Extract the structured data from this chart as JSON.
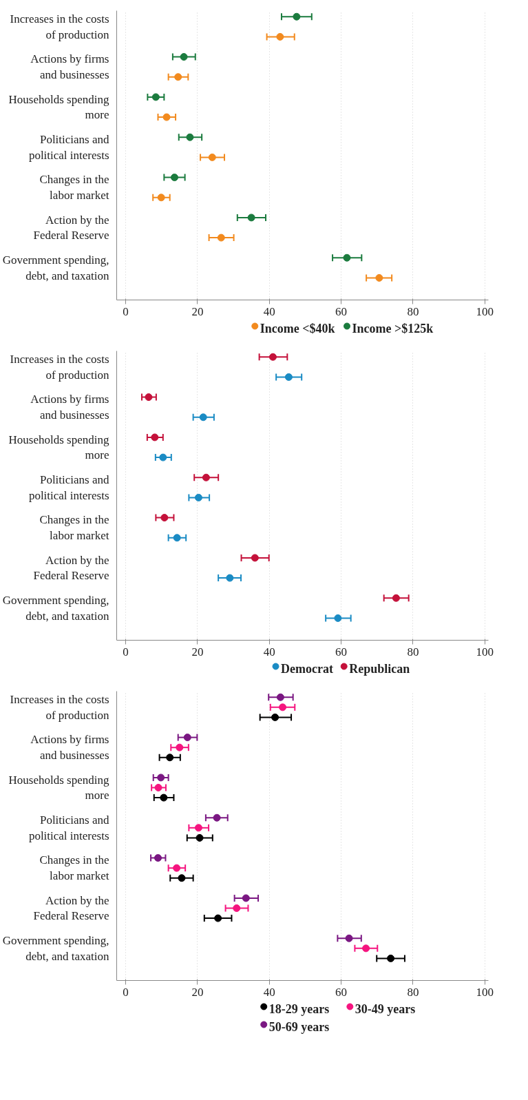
{
  "chart_data": [
    {
      "type": "scatter",
      "orientation": "horizontal",
      "marker": "circle",
      "grid": "x",
      "legend": "bottom",
      "categories": [
        "Increases in the costs\nof production",
        "Actions by firms\nand businesses",
        "Households spending\nmore",
        "Politicians and\npolitical interests",
        "Changes in the\nlabor market",
        "Action by the\nFederal Reserve",
        "Government spending,\ndebt, and taxation"
      ],
      "xlim": [
        -2.5,
        101
      ],
      "xticks": [
        0,
        20,
        40,
        60,
        80,
        100
      ],
      "series": [
        {
          "name": "Income <$40k",
          "color": "#f28a1e",
          "values": [
            43.0,
            14.6,
            11.4,
            24.1,
            9.9,
            26.6,
            70.6
          ],
          "errors": [
            [
              39.3,
              47.0
            ],
            [
              11.9,
              17.4
            ],
            [
              9.0,
              13.9
            ],
            [
              20.8,
              27.5
            ],
            [
              7.6,
              12.3
            ],
            [
              23.2,
              30.1
            ],
            [
              67.0,
              74.1
            ]
          ]
        },
        {
          "name": "Income >$125k",
          "color": "#1b7b3e",
          "values": [
            47.6,
            16.2,
            8.4,
            17.9,
            13.6,
            35.0,
            61.6
          ],
          "errors": [
            [
              43.4,
              51.8
            ],
            [
              13.1,
              19.4
            ],
            [
              6.1,
              10.7
            ],
            [
              14.8,
              21.2
            ],
            [
              10.7,
              16.5
            ],
            [
              31.1,
              39.0
            ],
            [
              57.6,
              65.7
            ]
          ]
        }
      ]
    },
    {
      "type": "scatter",
      "orientation": "horizontal",
      "marker": "circle",
      "grid": "x",
      "legend": "bottom",
      "categories": [
        "Increases in the costs\nof production",
        "Actions by firms\nand businesses",
        "Households spending\nmore",
        "Politicians and\npolitical interests",
        "Changes in the\nlabor market",
        "Action by the\nFederal Reserve",
        "Government spending,\ndebt, and taxation"
      ],
      "xlim": [
        -2.5,
        101
      ],
      "xticks": [
        0,
        20,
        40,
        60,
        80,
        100
      ],
      "series": [
        {
          "name": "Democrat",
          "color": "#1a8bc4",
          "values": [
            45.4,
            21.6,
            10.4,
            20.3,
            14.3,
            29.0,
            59.1
          ],
          "errors": [
            [
              41.9,
              49.0
            ],
            [
              18.8,
              24.6
            ],
            [
              8.3,
              12.7
            ],
            [
              17.6,
              23.3
            ],
            [
              11.9,
              16.8
            ],
            [
              25.8,
              32.1
            ],
            [
              55.7,
              62.7
            ]
          ]
        },
        {
          "name": "Republican",
          "color": "#c4113a",
          "values": [
            41.0,
            6.4,
            8.1,
            22.4,
            10.8,
            36.0,
            75.3
          ],
          "errors": [
            [
              37.2,
              45.0
            ],
            [
              4.5,
              8.5
            ],
            [
              6.0,
              10.4
            ],
            [
              19.1,
              25.8
            ],
            [
              8.4,
              13.4
            ],
            [
              32.2,
              39.9
            ],
            [
              71.9,
              78.8
            ]
          ]
        }
      ]
    },
    {
      "type": "scatter",
      "orientation": "horizontal",
      "marker": "circle",
      "grid": "x",
      "legend": "bottom",
      "categories": [
        "Increases in the costs\nof production",
        "Actions by firms\nand businesses",
        "Households spending\nmore",
        "Politicians and\npolitical interests",
        "Changes in the\nlabor market",
        "Action by the\nFederal Reserve",
        "Government spending,\ndebt, and taxation"
      ],
      "xlim": [
        -2.5,
        101
      ],
      "xticks": [
        0,
        20,
        40,
        60,
        80,
        100
      ],
      "series": [
        {
          "name": "18-29 years",
          "color": "#000000",
          "values": [
            41.6,
            12.3,
            10.6,
            20.6,
            15.6,
            25.7,
            73.8
          ],
          "errors": [
            [
              37.4,
              46.1
            ],
            [
              9.4,
              15.2
            ],
            [
              7.9,
              13.4
            ],
            [
              17.1,
              24.2
            ],
            [
              12.4,
              18.8
            ],
            [
              21.9,
              29.5
            ],
            [
              69.9,
              77.7
            ]
          ]
        },
        {
          "name": "30-49 years",
          "color": "#f5147f",
          "values": [
            43.7,
            15.0,
            9.1,
            20.3,
            14.2,
            30.9,
            66.9
          ],
          "errors": [
            [
              40.3,
              47.1
            ],
            [
              12.6,
              17.5
            ],
            [
              7.2,
              11.2
            ],
            [
              17.6,
              23.1
            ],
            [
              11.9,
              16.6
            ],
            [
              27.8,
              34.1
            ],
            [
              63.8,
              70.1
            ]
          ]
        },
        {
          "name": "50-69 years",
          "color": "#7a1782",
          "values": [
            43.1,
            17.2,
            9.8,
            25.4,
            9.0,
            33.5,
            62.2
          ],
          "errors": [
            [
              39.8,
              46.6
            ],
            [
              14.6,
              19.9
            ],
            [
              7.7,
              11.9
            ],
            [
              22.3,
              28.4
            ],
            [
              7.0,
              11.1
            ],
            [
              30.3,
              36.9
            ],
            [
              59.0,
              65.6
            ]
          ]
        }
      ]
    }
  ]
}
